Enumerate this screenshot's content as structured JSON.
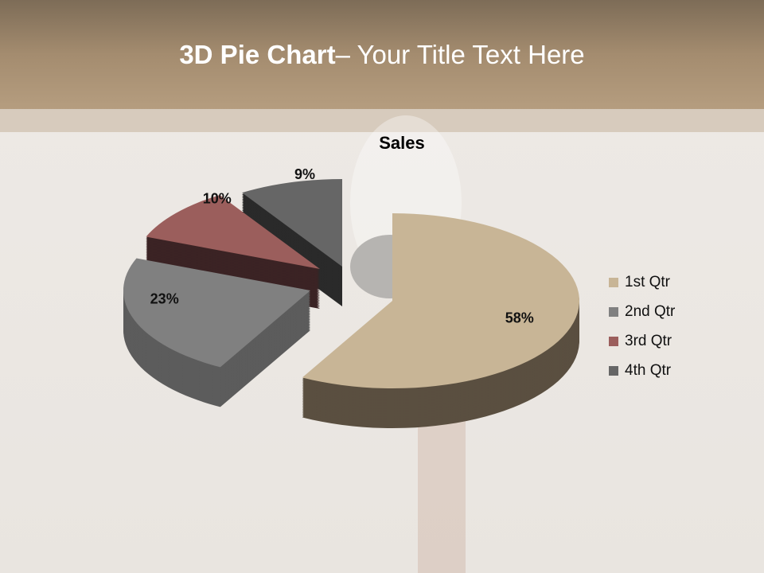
{
  "slide": {
    "title_bold": "3D Pie Chart",
    "title_rest": "– Your Title Text Here"
  },
  "chart_data": {
    "type": "pie",
    "three_d": true,
    "exploded": true,
    "title": "Sales",
    "categories": [
      "1st Qtr",
      "2nd Qtr",
      "3rd Qtr",
      "4th Qtr"
    ],
    "values": [
      58,
      23,
      10,
      9
    ],
    "labels": [
      "58%",
      "23%",
      "10%",
      "9%"
    ],
    "colors": [
      "#c8b596",
      "#808080",
      "#9b5e5c",
      "#666666"
    ],
    "legend_position": "right"
  }
}
